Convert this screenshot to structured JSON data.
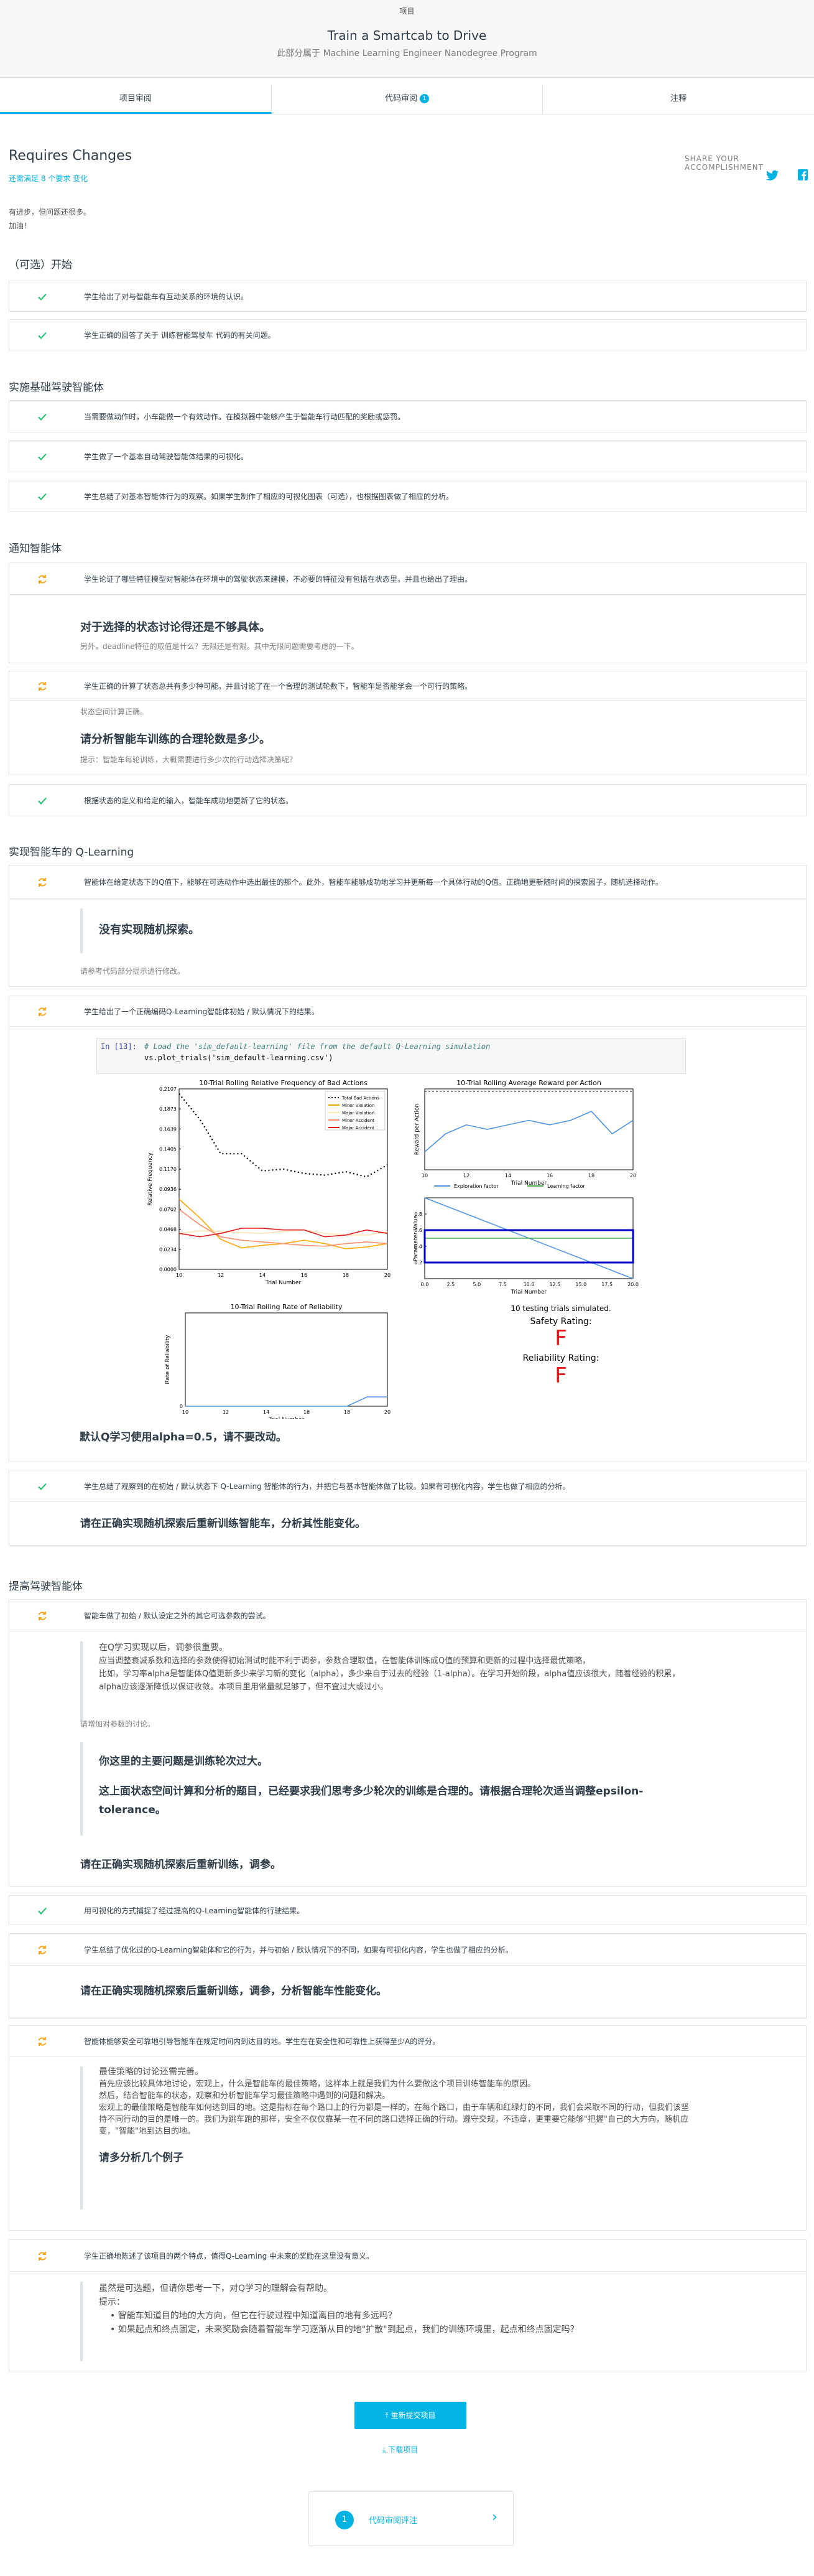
{
  "header": {
    "crumb": "项目",
    "title": "Train a Smartcab to Drive",
    "subtitle": "此部分属于 Machine Learning Engineer Nanodegree Program"
  },
  "tabs": [
    {
      "label": "项目审阅"
    },
    {
      "label": "代码审阅",
      "badge": "1"
    },
    {
      "label": "注释"
    }
  ],
  "status": {
    "title": "Requires Changes",
    "meets": "还需满足 8 个要求 变化"
  },
  "share": {
    "label": "SHARE YOUR ACCOMPLISHMENT"
  },
  "intro": [
    "有进步，但问题还很多。",
    "加油！"
  ],
  "sections": [
    {
      "title": "（可选）开始",
      "rows": [
        "学生给出了对与智能车有互动关系的环境的认识。",
        "学生正确的回答了关于 训练智能驾驶车 代码的有关问题。"
      ]
    },
    {
      "title": "实施基础驾驶智能体",
      "rows": [
        "当需要做动作时，小车能做一个有效动作。在模拟器中能够产生于智能车行动匹配的奖励或惩罚。",
        "学生做了一个基本自动驾驶智能体结果的可视化。",
        "学生总结了对基本智能体行为的观察。如果学生制作了相应的可视化图表（可选），也根据图表做了相应的分析。"
      ]
    },
    {
      "title": "通知智能体",
      "rows": [
        "学生论证了哪些特征模型对智能体在环境中的驾驶状态来建模，不必要的特征没有包括在状态里。并且也给出了理由。",
        "学生正确的计算了状态总共有多少种可能。并且讨论了在一个合理的测试轮数下，智能车是否能学会一个可行的策略。",
        "根据状态的定义和给定的输入，智能车成功地更新了它的状态。"
      ]
    },
    {
      "title": "实现智能车的 Q-Learning",
      "rows": [
        "智能体在给定状态下的Q值下，能够在可选动作中选出最佳的那个。此外，智能车能够成功地学习并更新每一个具体行动的Q值。正确地更新随时间的探索因子，随机选择动作。",
        "学生给出了一个正确编码Q-Learning智能体初始 / 默认情况下的结果。",
        "学生总结了观察到的在初始 / 默认状态下 Q-Learning 智能体的行为，并把它与基本智能体做了比较。如果有可视化内容，学生也做了相应的分析。"
      ]
    },
    {
      "title": "提高驾驶智能体",
      "rows": [
        "智能车做了初始 / 默认设定之外的其它可选参数的尝试。",
        "用可视化的方式捕捉了经过提高的Q-Learning智能体的行驶结果。",
        "学生总结了优化过的Q-Learning智能体和它的行为，并与初始 / 默认情况下的不同，如果有可视化内容，学生也做了相应的分析。",
        "智能体能够安全可靠地引导智能车在规定时间内到达目的地。学生在在安全性和可靠性上获得至少A的评分。",
        "学生正确地陈述了该项目的两个特点，值得Q-Learning 中未来的奖励在这里没有意义。"
      ]
    }
  ],
  "feedback": {
    "f1_title": "对于选择的状态讨论得还是不够具体。",
    "f1_note": "另外，deadline特征的取值是什么？无限还是有限。其中无限问题需要考虑的一下。",
    "f2_pre": "状态空间计算正确。",
    "f2_title": "请分析智能车训练的合理轮数是多少。",
    "f2_note": "提示：智能车每轮训练，大概需要进行多少次的行动选择决策呢？",
    "f3_title": "没有实现随机探索。",
    "f3_note": "请参考代码部分提示进行修改。",
    "f4_title": "默认Q学习使用alpha=0.5，请不要改动。",
    "f5_title": "请在正确实现随机探索后重新训练智能车，分析其性能变化。",
    "f6_quote": [
      "在Q学习实现以后，调参很重要。",
      "应当调整衰减系数和选择的参数使得初始测试时能不利于调参，参数合理取值，在智能体训练成Q值的预算和更新的过程中选择最优策略，",
      "比如，学习率alpha是智能体Q值更新多少来学习新的变化（alpha），多少来自于过去的经验（1-alpha）。在学习开始阶段，alpha值应该很大，随着经验的积累，alpha应该逐渐降低以保证收敛。本项目里用常量就足够了，但不宜过大或过小。"
    ],
    "f6_note": "请增加对参数的讨论。",
    "f6_h1": "你这里的主要问题是训练轮次过大。",
    "f6_h2": "这上面状态空间计算和分析的题目，已经要求我们思考多少轮次的训练是合理的。请根据合理轮次适当调整epsilon-tolerance。",
    "f6_h3": "请在正确实现随机探索后重新训练，调参。",
    "f7_title": "请在正确实现随机探索后重新训练，调参，分析智能车性能变化。",
    "f8_quote": [
      "最佳策略的讨论还需完善。",
      "首先应该比较具体地讨论，宏观上，什么是智能车的最佳策略，这样本上就是我们为什么要做这个项目训练智能车的原因。",
      "然后，结合智能车的状态，观察和分析智能车学习最佳策略中遇到的问题和解决。",
      "宏观上的最佳策略是智能车如何达到目的地。这是指标在每个路口上的行为都是一样的，在每个路口，由于车辆和红绿灯的不同，我们会采取不同的行动，但我们该坚持不同行动的目的是唯一的。我们为跳车跑的那样，安全不仅仅靠某一在不同的路口选择正确的行动。遵守交规，不违章，更重要它能够\"把握\"自己的大方向，随机应变，\"智能\"地到达目的地。"
    ],
    "f8_h": "请多分析几个例子",
    "f9_quote": "虽然是可选题，但请你思考一下，对Q学习的理解会有帮助。",
    "f9_hint": "提示：",
    "f9_items": [
      "智能车知道目的地的大方向，但它在行驶过程中知道离目的地有多远吗？",
      "如果起点和终点固定，未来奖励会随着智能车学习逐渐从目的地\"扩散\"到起点，我们的训练环境里，起点和终点固定吗？"
    ]
  },
  "code": {
    "prompt": "In [13]:",
    "comment": "# Load the 'sim_default-learning' file from the default Q-Learning simulation",
    "call": "vs.plot_trials('sim_default-learning.csv')"
  },
  "buttons": {
    "submit": "重新提交项目",
    "download": "下载项目"
  },
  "next": {
    "num": "1",
    "label": "代码审阅评注"
  },
  "chart_data": [
    {
      "type": "line",
      "title": "10-Trial Rolling Relative Frequency of Bad Actions",
      "xlabel": "Trial Number",
      "ylabel": "Relative Frequency",
      "xlim": [
        10,
        20
      ],
      "yticks": [
        "0.2107",
        "0.1873",
        "0.1639",
        "0.1405",
        "0.1170",
        "0.0936",
        "0.0702",
        "0.0468",
        "0.0234",
        "0.0000"
      ],
      "x": [
        10,
        11,
        12,
        13,
        14,
        15,
        16,
        17,
        18,
        19,
        20
      ],
      "series": [
        {
          "name": "Total Bad Actions",
          "color": "#000000",
          "dash": true,
          "values": [
            0.205,
            0.175,
            0.135,
            0.135,
            0.115,
            0.117,
            0.112,
            0.11,
            0.114,
            0.108,
            0.122
          ]
        },
        {
          "name": "Minor Violation",
          "color": "#ffa500",
          "values": [
            0.082,
            0.06,
            0.035,
            0.025,
            0.028,
            0.03,
            0.034,
            0.03,
            0.024,
            0.026,
            0.03
          ]
        },
        {
          "name": "Major Violation",
          "color": "#ffe4b5",
          "values": [
            0.042,
            0.045,
            0.044,
            0.043,
            0.042,
            0.044,
            0.046,
            0.042,
            0.04,
            0.04,
            0.044
          ]
        },
        {
          "name": "Minor Accident",
          "color": "#ff8c69",
          "values": [
            0.07,
            0.052,
            0.038,
            0.034,
            0.032,
            0.03,
            0.028,
            0.027,
            0.03,
            0.032,
            0.03
          ]
        },
        {
          "name": "Major Accident",
          "color": "#e41a1c",
          "values": [
            0.042,
            0.038,
            0.042,
            0.048,
            0.048,
            0.046,
            0.046,
            0.038,
            0.04,
            0.046,
            0.042
          ]
        }
      ]
    },
    {
      "type": "line",
      "title": "10-Trial Rolling Average Reward per Action",
      "xlabel": "Trial Number",
      "ylabel": "Reward per Action",
      "xlim": [
        10,
        20
      ],
      "x": [
        10,
        11,
        12,
        13,
        14,
        15,
        16,
        17,
        18,
        19,
        20
      ],
      "series": [
        {
          "name": "",
          "color": "#4f94e0",
          "values": [
            -2.6,
            -2.2,
            -2.0,
            -2.1,
            -2.0,
            -1.9,
            -2.0,
            -1.9,
            -1.7,
            -2.2,
            -1.9
          ]
        }
      ]
    },
    {
      "type": "line",
      "xlabel": "Trial Number",
      "ylabel": "Parameter Value",
      "xlim": [
        0,
        20
      ],
      "ylim": [
        0,
        1
      ],
      "xticks": [
        "0.0",
        "2.5",
        "5.0",
        "7.5",
        "10.0",
        "12.5",
        "15.0",
        "17.5",
        "20.0"
      ],
      "yticks": [
        "0.2",
        "0.4",
        "0.6",
        "0.8"
      ],
      "series": [
        {
          "name": "Exploration factor",
          "color": "#4f94e0",
          "x": [
            0,
            20
          ],
          "values": [
            1.0,
            0.0
          ]
        },
        {
          "name": "Learning factor",
          "color": "#4daf4a",
          "x": [
            0,
            20
          ],
          "values": [
            0.5,
            0.5
          ]
        }
      ]
    },
    {
      "type": "line",
      "title": "10-Trial Rolling Rate of Reliability",
      "xlabel": "Trial Number",
      "ylabel": "Rate of Reliability",
      "xlim": [
        10,
        20
      ],
      "x": [
        10,
        11,
        12,
        13,
        14,
        15,
        16,
        17,
        18,
        19,
        20
      ],
      "series": [
        {
          "name": "",
          "color": "#4f94e0",
          "values": [
            0,
            0,
            0,
            0,
            0,
            0,
            0,
            0,
            0,
            0.1,
            0.1
          ]
        }
      ]
    }
  ],
  "results": {
    "trials": "10 testing trials simulated.",
    "safety_label": "Safety Rating:",
    "safety": "F",
    "reliability_label": "Reliability Rating:",
    "reliability": "F"
  }
}
